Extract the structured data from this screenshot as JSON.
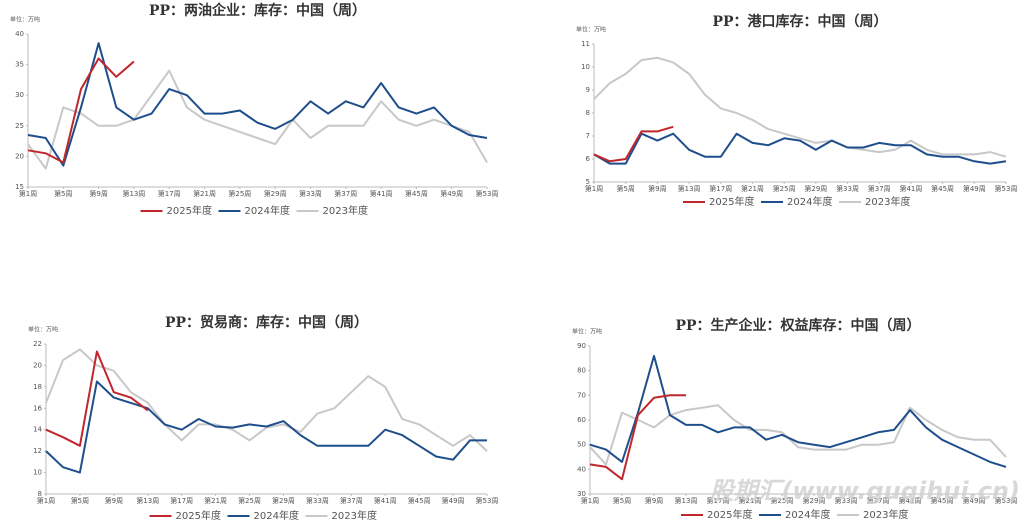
{
  "chart_data": [
    {
      "type": "line",
      "title": "PP：两油企业：库存：中国（周）",
      "unit": "单位：万吨",
      "x": [
        1,
        3,
        5,
        7,
        9,
        11,
        13,
        15,
        17,
        19,
        21,
        23,
        25,
        27,
        29,
        31,
        33,
        35,
        37,
        39,
        41,
        43,
        45,
        47,
        49,
        51,
        53
      ],
      "xlim": [
        1,
        53
      ],
      "xticks": [
        {
          "value": 1,
          "label": "第1周"
        },
        {
          "value": 5,
          "label": "第5周"
        },
        {
          "value": 9,
          "label": "第9周"
        },
        {
          "value": 13,
          "label": "第13周"
        },
        {
          "value": 17,
          "label": "第17周"
        },
        {
          "value": 21,
          "label": "第21周"
        },
        {
          "value": 25,
          "label": "第25周"
        },
        {
          "value": 29,
          "label": "第29周"
        },
        {
          "value": 33,
          "label": "第33周"
        },
        {
          "value": 37,
          "label": "第37周"
        },
        {
          "value": 41,
          "label": "第41周"
        },
        {
          "value": 45,
          "label": "第45周"
        },
        {
          "value": 49,
          "label": "第49周"
        },
        {
          "value": 53,
          "label": "第53周"
        }
      ],
      "ylim": [
        15,
        40
      ],
      "yticks": [
        15,
        20,
        25,
        30,
        35,
        40
      ],
      "series": [
        {
          "name": "2025年度",
          "color": "#c0272d",
          "values": [
            21,
            20.5,
            19,
            31,
            36,
            33,
            35.5,
            null,
            null,
            null,
            null,
            null,
            null,
            null,
            null,
            null,
            null,
            null,
            null,
            null,
            null,
            null,
            null,
            null,
            null,
            null,
            null
          ]
        },
        {
          "name": "2024年度",
          "color": "#1f4e8c",
          "values": [
            23.5,
            23,
            18.5,
            28,
            38.5,
            28,
            26,
            27,
            31,
            30,
            27,
            27,
            27.5,
            25.5,
            24.5,
            26,
            29,
            27,
            29,
            28,
            32,
            28,
            27,
            28,
            25,
            23.5,
            23
          ]
        },
        {
          "name": "2023年度",
          "color": "#c8c8c8",
          "values": [
            22,
            18,
            28,
            27,
            25,
            25,
            26,
            30,
            34,
            28,
            26,
            25,
            24,
            23,
            22,
            26,
            23,
            25,
            25,
            25,
            29,
            26,
            25,
            26,
            25,
            24,
            19
          ]
        }
      ]
    },
    {
      "type": "line",
      "title": "PP：港口库存：中国（周）",
      "unit": "单位：万吨",
      "x": [
        1,
        3,
        5,
        7,
        9,
        11,
        13,
        15,
        17,
        19,
        21,
        23,
        25,
        27,
        29,
        31,
        33,
        35,
        37,
        39,
        41,
        43,
        45,
        47,
        49,
        51,
        53
      ],
      "xlim": [
        1,
        53
      ],
      "xticks": [
        {
          "value": 1,
          "label": "第1周"
        },
        {
          "value": 5,
          "label": "第5周"
        },
        {
          "value": 9,
          "label": "第9周"
        },
        {
          "value": 13,
          "label": "第13周"
        },
        {
          "value": 17,
          "label": "第17周"
        },
        {
          "value": 21,
          "label": "第21周"
        },
        {
          "value": 25,
          "label": "第25周"
        },
        {
          "value": 29,
          "label": "第29周"
        },
        {
          "value": 33,
          "label": "第33周"
        },
        {
          "value": 37,
          "label": "第37周"
        },
        {
          "value": 41,
          "label": "第41周"
        },
        {
          "value": 45,
          "label": "第45周"
        },
        {
          "value": 49,
          "label": "第49周"
        },
        {
          "value": 53,
          "label": "第53周"
        }
      ],
      "ylim": [
        5,
        11
      ],
      "yticks": [
        5,
        6,
        7,
        8,
        9,
        10,
        11
      ],
      "series": [
        {
          "name": "2025年度",
          "color": "#c0272d",
          "values": [
            6.2,
            5.9,
            6,
            7.2,
            7.2,
            7.4,
            null,
            null,
            null,
            null,
            null,
            null,
            null,
            null,
            null,
            null,
            null,
            null,
            null,
            null,
            null,
            null,
            null,
            null,
            null,
            null,
            null
          ]
        },
        {
          "name": "2024年度",
          "color": "#1f4e8c",
          "values": [
            6.2,
            5.8,
            5.8,
            7.1,
            6.8,
            7.1,
            6.4,
            6.1,
            6.1,
            7.1,
            6.7,
            6.6,
            6.9,
            6.8,
            6.4,
            6.8,
            6.5,
            6.5,
            6.7,
            6.6,
            6.6,
            6.2,
            6.1,
            6.1,
            5.9,
            5.8,
            5.9
          ]
        },
        {
          "name": "2023年度",
          "color": "#c8c8c8",
          "values": [
            8.6,
            9.3,
            9.7,
            10.3,
            10.4,
            10.2,
            9.7,
            8.8,
            8.2,
            8,
            7.7,
            7.3,
            7.1,
            6.9,
            6.7,
            6.8,
            6.5,
            6.4,
            6.3,
            6.4,
            6.8,
            6.4,
            6.2,
            6.2,
            6.2,
            6.3,
            6.1
          ]
        }
      ]
    },
    {
      "type": "line",
      "title": "PP：贸易商：库存：中国（周）",
      "unit": "单位：万吨",
      "x": [
        1,
        3,
        5,
        7,
        9,
        11,
        13,
        15,
        17,
        19,
        21,
        23,
        25,
        27,
        29,
        31,
        33,
        35,
        37,
        39,
        41,
        43,
        45,
        47,
        49,
        51,
        53
      ],
      "xlim": [
        1,
        53
      ],
      "xticks": [
        {
          "value": 1,
          "label": "第1周"
        },
        {
          "value": 5,
          "label": "第5周"
        },
        {
          "value": 9,
          "label": "第9周"
        },
        {
          "value": 13,
          "label": "第13周"
        },
        {
          "value": 17,
          "label": "第17周"
        },
        {
          "value": 21,
          "label": "第21周"
        },
        {
          "value": 25,
          "label": "第25周"
        },
        {
          "value": 29,
          "label": "第29周"
        },
        {
          "value": 33,
          "label": "第33周"
        },
        {
          "value": 37,
          "label": "第37周"
        },
        {
          "value": 41,
          "label": "第41周"
        },
        {
          "value": 45,
          "label": "第45周"
        },
        {
          "value": 49,
          "label": "第49周"
        },
        {
          "value": 53,
          "label": "第53周"
        }
      ],
      "ylim": [
        8,
        22
      ],
      "yticks": [
        8,
        10,
        12,
        14,
        16,
        18,
        20,
        22
      ],
      "series": [
        {
          "name": "2025年度",
          "color": "#c0272d",
          "values": [
            14,
            13.3,
            12.5,
            21.3,
            17.5,
            17,
            15.8,
            null,
            null,
            null,
            null,
            null,
            null,
            null,
            null,
            null,
            null,
            null,
            null,
            null,
            null,
            null,
            null,
            null,
            null,
            null,
            null
          ]
        },
        {
          "name": "2024年度",
          "color": "#1f4e8c",
          "values": [
            12,
            10.5,
            10,
            18.5,
            17,
            16.5,
            16,
            14.5,
            14,
            15,
            14.3,
            14.2,
            14.5,
            14.3,
            14.8,
            13.5,
            12.5,
            12.5,
            12.5,
            12.5,
            14,
            13.5,
            12.5,
            11.5,
            11.2,
            13,
            13
          ]
        },
        {
          "name": "2023年度",
          "color": "#c8c8c8",
          "values": [
            16.5,
            20.5,
            21.5,
            20,
            19.5,
            17.5,
            16.5,
            14.5,
            13,
            14.5,
            14.5,
            14,
            13,
            14.2,
            14.5,
            13.8,
            15.5,
            16,
            17.5,
            19,
            18,
            15,
            14.5,
            13.5,
            12.5,
            13.5,
            12
          ]
        }
      ]
    },
    {
      "type": "line",
      "title": "PP：生产企业：权益库存：中国（周）",
      "unit": "单位：万吨",
      "x": [
        1,
        3,
        5,
        7,
        9,
        11,
        13,
        15,
        17,
        19,
        21,
        23,
        25,
        27,
        29,
        31,
        33,
        35,
        37,
        39,
        41,
        43,
        45,
        47,
        49,
        51,
        53
      ],
      "xlim": [
        1,
        53
      ],
      "xticks": [
        {
          "value": 1,
          "label": "第1周"
        },
        {
          "value": 5,
          "label": "第5周"
        },
        {
          "value": 9,
          "label": "第9周"
        },
        {
          "value": 13,
          "label": "第13周"
        },
        {
          "value": 17,
          "label": "第17周"
        },
        {
          "value": 21,
          "label": "第21周"
        },
        {
          "value": 25,
          "label": "第25周"
        },
        {
          "value": 29,
          "label": "第29周"
        },
        {
          "value": 33,
          "label": "第33周"
        },
        {
          "value": 37,
          "label": "第37周"
        },
        {
          "value": 41,
          "label": "第41周"
        },
        {
          "value": 45,
          "label": "第45周"
        },
        {
          "value": 49,
          "label": "第49周"
        },
        {
          "value": 53,
          "label": "第53周"
        }
      ],
      "ylim": [
        30,
        90
      ],
      "yticks": [
        30,
        40,
        50,
        60,
        70,
        80,
        90
      ],
      "series": [
        {
          "name": "2025年度",
          "color": "#c0272d",
          "values": [
            42,
            41,
            36,
            62,
            69,
            70,
            70,
            null,
            null,
            null,
            null,
            null,
            null,
            null,
            null,
            null,
            null,
            null,
            null,
            null,
            null,
            null,
            null,
            null,
            null,
            null,
            null
          ]
        },
        {
          "name": "2024年度",
          "color": "#1f4e8c",
          "values": [
            50,
            48,
            43,
            63,
            86,
            62,
            58,
            58,
            55,
            57,
            57,
            52,
            54,
            51,
            50,
            49,
            51,
            53,
            55,
            56,
            64,
            57,
            52,
            49,
            46,
            43,
            41
          ]
        },
        {
          "name": "2023年度",
          "color": "#c8c8c8",
          "values": [
            49,
            42,
            63,
            60,
            57,
            62,
            64,
            65,
            66,
            60,
            56,
            56,
            55,
            49,
            48,
            48,
            48,
            50,
            50,
            51,
            65,
            60,
            56,
            53,
            52,
            52,
            45
          ]
        }
      ]
    }
  ],
  "watermark": "股期汇(www.guqihui.cn)"
}
